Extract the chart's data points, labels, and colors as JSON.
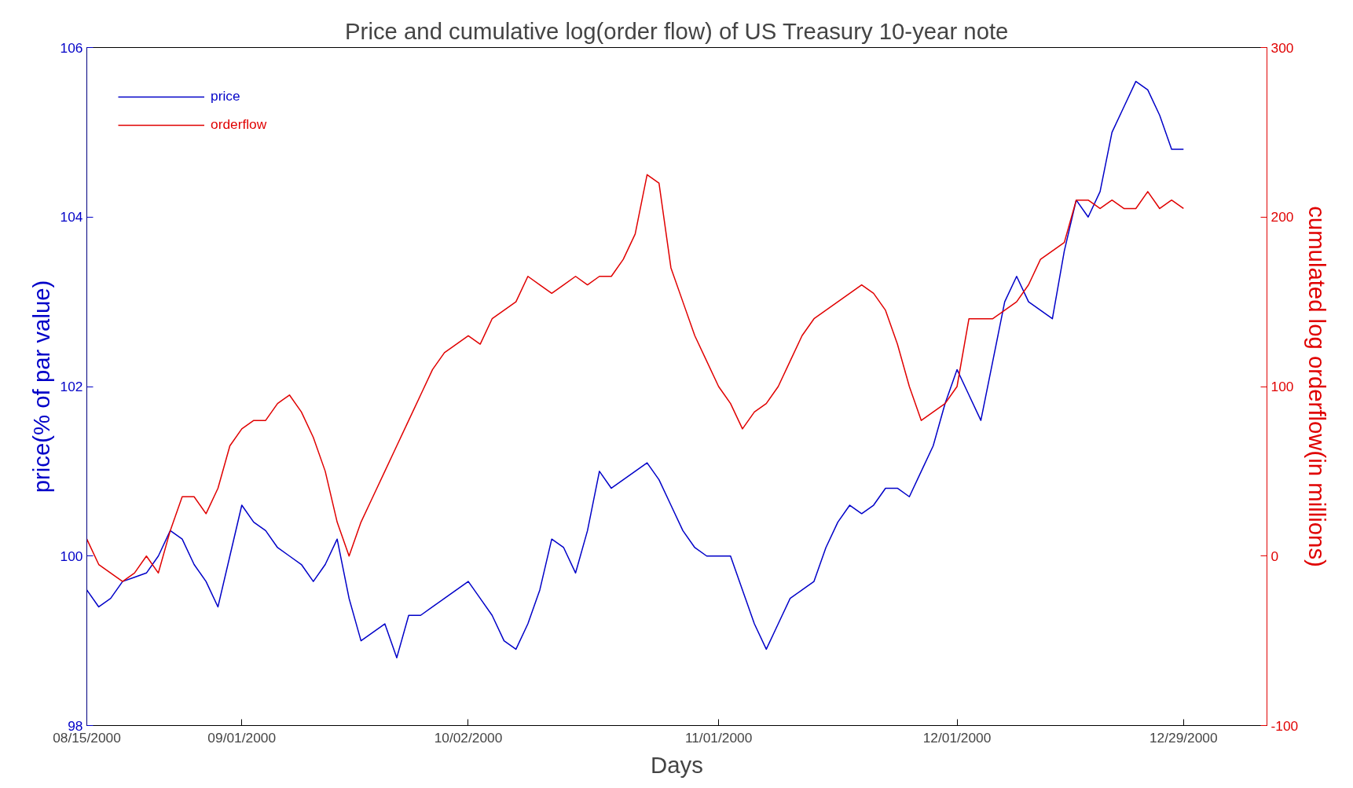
{
  "chart_data": {
    "type": "line",
    "title": "Price and cumulative log(order flow) of US Treasury 10-year note",
    "xlabel": "Days",
    "ylabel": "price(% of par value)",
    "y2label": "cumulated log orderflow(in millions)",
    "categories": [
      "08/15/2000",
      null,
      null,
      null,
      null,
      null,
      null,
      null,
      null,
      null,
      null,
      null,
      null,
      "09/01/2000",
      null,
      null,
      null,
      null,
      null,
      null,
      null,
      null,
      null,
      null,
      null,
      null,
      null,
      null,
      null,
      null,
      null,
      null,
      "10/02/2000",
      null,
      null,
      null,
      null,
      null,
      null,
      null,
      null,
      null,
      null,
      null,
      null,
      null,
      null,
      null,
      null,
      null,
      null,
      null,
      null,
      "11/01/2000",
      null,
      null,
      null,
      null,
      null,
      null,
      null,
      null,
      null,
      null,
      null,
      null,
      null,
      null,
      null,
      null,
      null,
      null,
      null,
      "12/01/2000",
      null,
      null,
      null,
      null,
      null,
      null,
      null,
      null,
      null,
      null,
      null,
      null,
      null,
      null,
      null,
      null,
      null,
      null,
      "12/29/2000",
      null,
      null,
      null,
      null,
      null,
      null,
      null
    ],
    "series": [
      {
        "name": "price",
        "color": "#0000c8",
        "values": [
          99.6,
          99.4,
          99.5,
          99.7,
          99.75,
          99.8,
          100.0,
          100.3,
          100.2,
          99.9,
          99.7,
          99.4,
          100.0,
          100.6,
          100.4,
          100.3,
          100.1,
          100.0,
          99.9,
          99.7,
          99.9,
          100.2,
          99.5,
          99.0,
          99.1,
          99.2,
          98.8,
          99.3,
          99.3,
          99.4,
          99.5,
          99.6,
          99.7,
          99.5,
          99.3,
          99.0,
          98.9,
          99.2,
          99.6,
          100.2,
          100.1,
          99.8,
          100.3,
          101.0,
          100.8,
          100.9,
          101.0,
          101.1,
          100.9,
          100.6,
          100.3,
          100.1,
          100.0,
          100.0,
          100.0,
          99.6,
          99.2,
          98.9,
          99.2,
          99.5,
          99.6,
          99.7,
          100.1,
          100.4,
          100.6,
          100.5,
          100.6,
          100.8,
          100.8,
          100.7,
          101.0,
          101.3,
          101.8,
          102.2,
          101.9,
          101.6,
          102.3,
          103.0,
          103.3,
          103.0,
          102.9,
          102.8,
          103.6,
          104.2,
          104.0,
          104.3,
          105.0,
          105.3,
          105.6,
          105.5,
          105.2,
          104.8,
          104.8,
          null,
          null,
          null,
          null,
          null,
          null,
          null
        ]
      },
      {
        "name": "orderflow",
        "color": "#e00000",
        "axis": "y2",
        "values": [
          10,
          -5,
          -10,
          -15,
          -10,
          0,
          -10,
          15,
          35,
          35,
          25,
          40,
          65,
          75,
          80,
          80,
          90,
          95,
          85,
          70,
          50,
          20,
          0,
          20,
          35,
          50,
          65,
          80,
          95,
          110,
          120,
          125,
          130,
          125,
          140,
          145,
          150,
          165,
          160,
          155,
          160,
          165,
          160,
          165,
          165,
          175,
          190,
          225,
          220,
          170,
          150,
          130,
          115,
          100,
          90,
          75,
          85,
          90,
          100,
          115,
          130,
          140,
          145,
          150,
          155,
          160,
          155,
          145,
          125,
          100,
          80,
          85,
          90,
          100,
          140,
          140,
          140,
          145,
          150,
          160,
          175,
          180,
          185,
          210,
          210,
          205,
          210,
          205,
          205,
          215,
          205,
          210,
          205,
          null,
          null,
          null,
          null,
          null,
          null,
          null
        ]
      }
    ],
    "ylim": [
      98,
      106
    ],
    "yticks": [
      98,
      100,
      102,
      104,
      106
    ],
    "y2lim": [
      -100,
      300
    ],
    "y2ticks": [
      -100,
      0,
      100,
      200,
      300
    ],
    "grid": false,
    "legend": "top left",
    "marker": "none",
    "line_style": "solid"
  }
}
